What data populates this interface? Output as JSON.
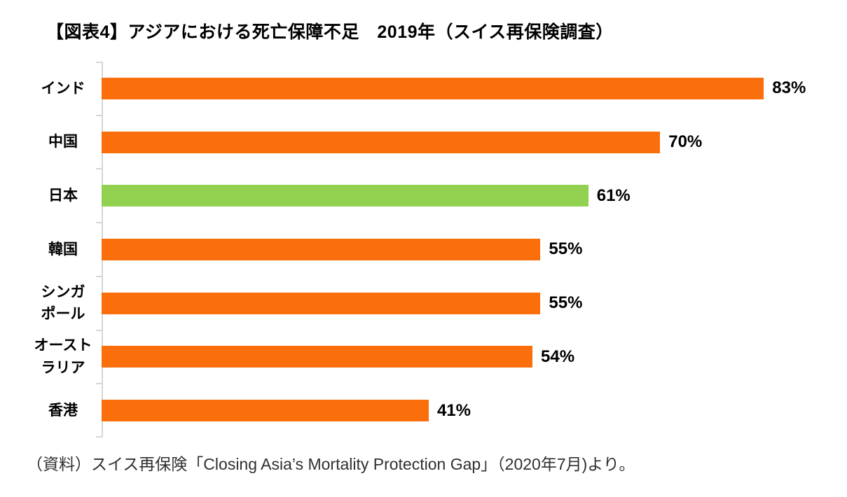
{
  "chart_data": {
    "type": "bar",
    "orientation": "horizontal",
    "title": "【図表4】アジアにおける死亡保障不足　2019年（スイス再保険調査）",
    "categories": [
      "インド",
      "中国",
      "日本",
      "韓国",
      "シンガ\nポール",
      "オースト\nラリア",
      "香港"
    ],
    "values": [
      83,
      70,
      61,
      55,
      55,
      54,
      41
    ],
    "value_labels": [
      "83%",
      "70%",
      "61%",
      "55%",
      "55%",
      "54%",
      "41%"
    ],
    "highlight_index": 2,
    "xlim": [
      0,
      90
    ],
    "grid": false,
    "legend": "none",
    "bar_color": "#FA6E0B",
    "highlight_color": "#92D050",
    "axis_color": "#D6D6D6"
  },
  "source_note": "（資料）スイス再保険「Closing Asia’s Mortality Protection Gap」（2020年7月)より。"
}
